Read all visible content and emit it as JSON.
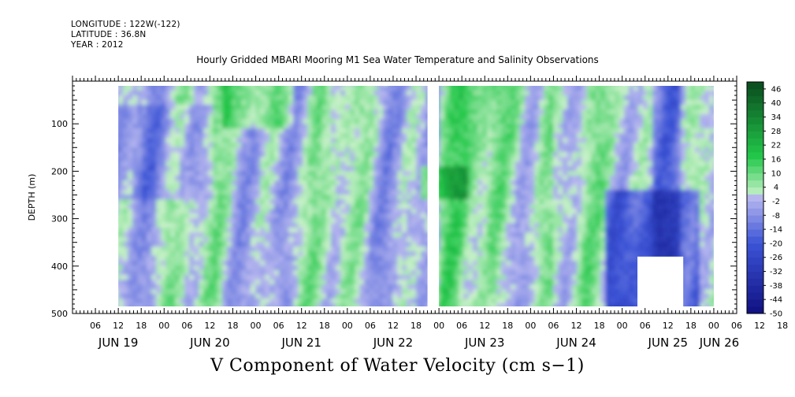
{
  "header": {
    "longitude": "LONGITUDE : 122W(-122)",
    "latitude": "LATITUDE : 36.8N",
    "year": "YEAR : 2012"
  },
  "chart_data": {
    "type": "heatmap",
    "title": "Hourly Gridded MBARI Mooring M1 Sea Water Temperature and Salinity Observations",
    "xlabel": "V Component of Water Velocity (cm s−1)",
    "ylabel": "DEPTH (m)",
    "ylim": [
      500,
      10
    ],
    "y_ticks": [
      "100",
      "200",
      "300",
      "400",
      "500"
    ],
    "x_hour_ticks": [
      "06",
      "12",
      "18",
      "00",
      "06",
      "12",
      "18",
      "00",
      "06",
      "12",
      "18",
      "00",
      "06",
      "12",
      "18",
      "00",
      "06",
      "12",
      "18",
      "00",
      "06",
      "12",
      "18",
      "00",
      "06",
      "12",
      "18",
      "00",
      "06",
      "12",
      "18",
      "00"
    ],
    "x_day_labels": [
      "JUN 19",
      "JUN 20",
      "JUN 21",
      "JUN 22",
      "JUN 23",
      "JUN 24",
      "JUN 25",
      "JUN 26"
    ],
    "time_range": [
      "2012-06-19T00:00",
      "2012-06-26T06:00"
    ],
    "data_time_range": [
      "2012-06-19T12:00",
      "2012-06-26T00:00"
    ],
    "data_depth_range": [
      20,
      485
    ],
    "missing_regions": [
      {
        "t_start": "2012-06-22T21:00",
        "t_end": "2012-06-23T00:00",
        "depth_start": 20,
        "depth_end": 485
      },
      {
        "t_start": "2012-06-25T04:00",
        "t_end": "2012-06-25T16:00",
        "depth_start": 380,
        "depth_end": 485
      }
    ],
    "colorbar": {
      "labels": [
        "46",
        "40",
        "34",
        "28",
        "22",
        "16",
        "10",
        "4",
        "-2",
        "-8",
        "-14",
        "-20",
        "-26",
        "-32",
        "-38",
        "-44",
        "-50"
      ],
      "min": -50,
      "max": 49,
      "step": 3
    },
    "colors": {
      "neg_dark": "#101080",
      "neg_mid": "#3b53d6",
      "neg_light": "#b9b9ef",
      "pos_light": "#cdf2cd",
      "pos_mid": "#22c84a",
      "pos_dark": "#0a4a1e"
    }
  }
}
